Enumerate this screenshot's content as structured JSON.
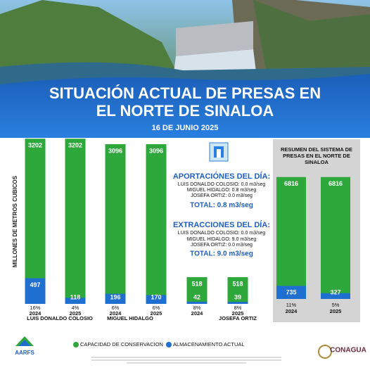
{
  "header": {
    "title_lines": [
      "SITUACIÓN ACTUAL DE  PRESAS EN",
      "EL NORTE DE SINALOA"
    ],
    "date": "16 DE JUNIO 2025"
  },
  "chart_data": [
    {
      "type": "bar",
      "y_label": "MILLONES DE METROS CUBICOS",
      "categories": [
        "2024",
        "2025",
        "2024",
        "2025",
        "2024",
        "2025"
      ],
      "percent_labels": [
        "16%",
        "4%",
        "6%",
        "6%",
        "8%",
        "8%"
      ],
      "groups": [
        "LUIS DONALDO COLOSIO",
        "MIGUEL HIDALGO",
        "JOSEFA ORTIZ"
      ],
      "series": [
        {
          "name": "CAPACIDAD DE CONSERVACION",
          "color": "#2ea83a",
          "values": [
            3202,
            3202,
            3096,
            3096,
            518,
            518
          ]
        },
        {
          "name": "ALMACENAMIENTO ACTUAL",
          "color": "#1f6fd1",
          "values": [
            497,
            118,
            196,
            170,
            42,
            39
          ]
        }
      ],
      "ylim": [
        0,
        3300
      ]
    },
    {
      "type": "bar",
      "title": "RESUMEN DEL SISTEMA DE PRESAS EN EL NORTE DE SINALOA",
      "categories": [
        "2024",
        "2025"
      ],
      "percent_labels": [
        "11%",
        "5%"
      ],
      "series": [
        {
          "color": "#2ea83a",
          "values": [
            6816,
            6816
          ]
        },
        {
          "color": "#1f6fd1",
          "values": [
            735,
            327
          ]
        }
      ],
      "ylim": [
        0,
        7000
      ]
    }
  ],
  "inflows": {
    "heading": "APORTACIÓNES DEL DÍA:",
    "lines": [
      "LUIS DONALDO COLOSIO: 0.0 m3/seg",
      "MIGUEL HIDALGO: 0.8 m3/seg",
      "JOSEFA ORTIZ: 0.0 m3/seg"
    ],
    "total": "TOTAL: 0.8 m3/seg"
  },
  "outflows": {
    "heading": "EXTRACCIONES DEL DÍA:",
    "lines": [
      "LUIS DONALDO COLOSIO: 0.0 m3/seg",
      "MIGUEL HIDALGO: 9.0 m3/seg",
      "JOSEFA ORTIZ: 0.0 m3/seg"
    ],
    "total": "TOTAL: 9.0 m3/seg"
  },
  "logos": {
    "left": "AARFS",
    "right": "CONAGUA"
  }
}
